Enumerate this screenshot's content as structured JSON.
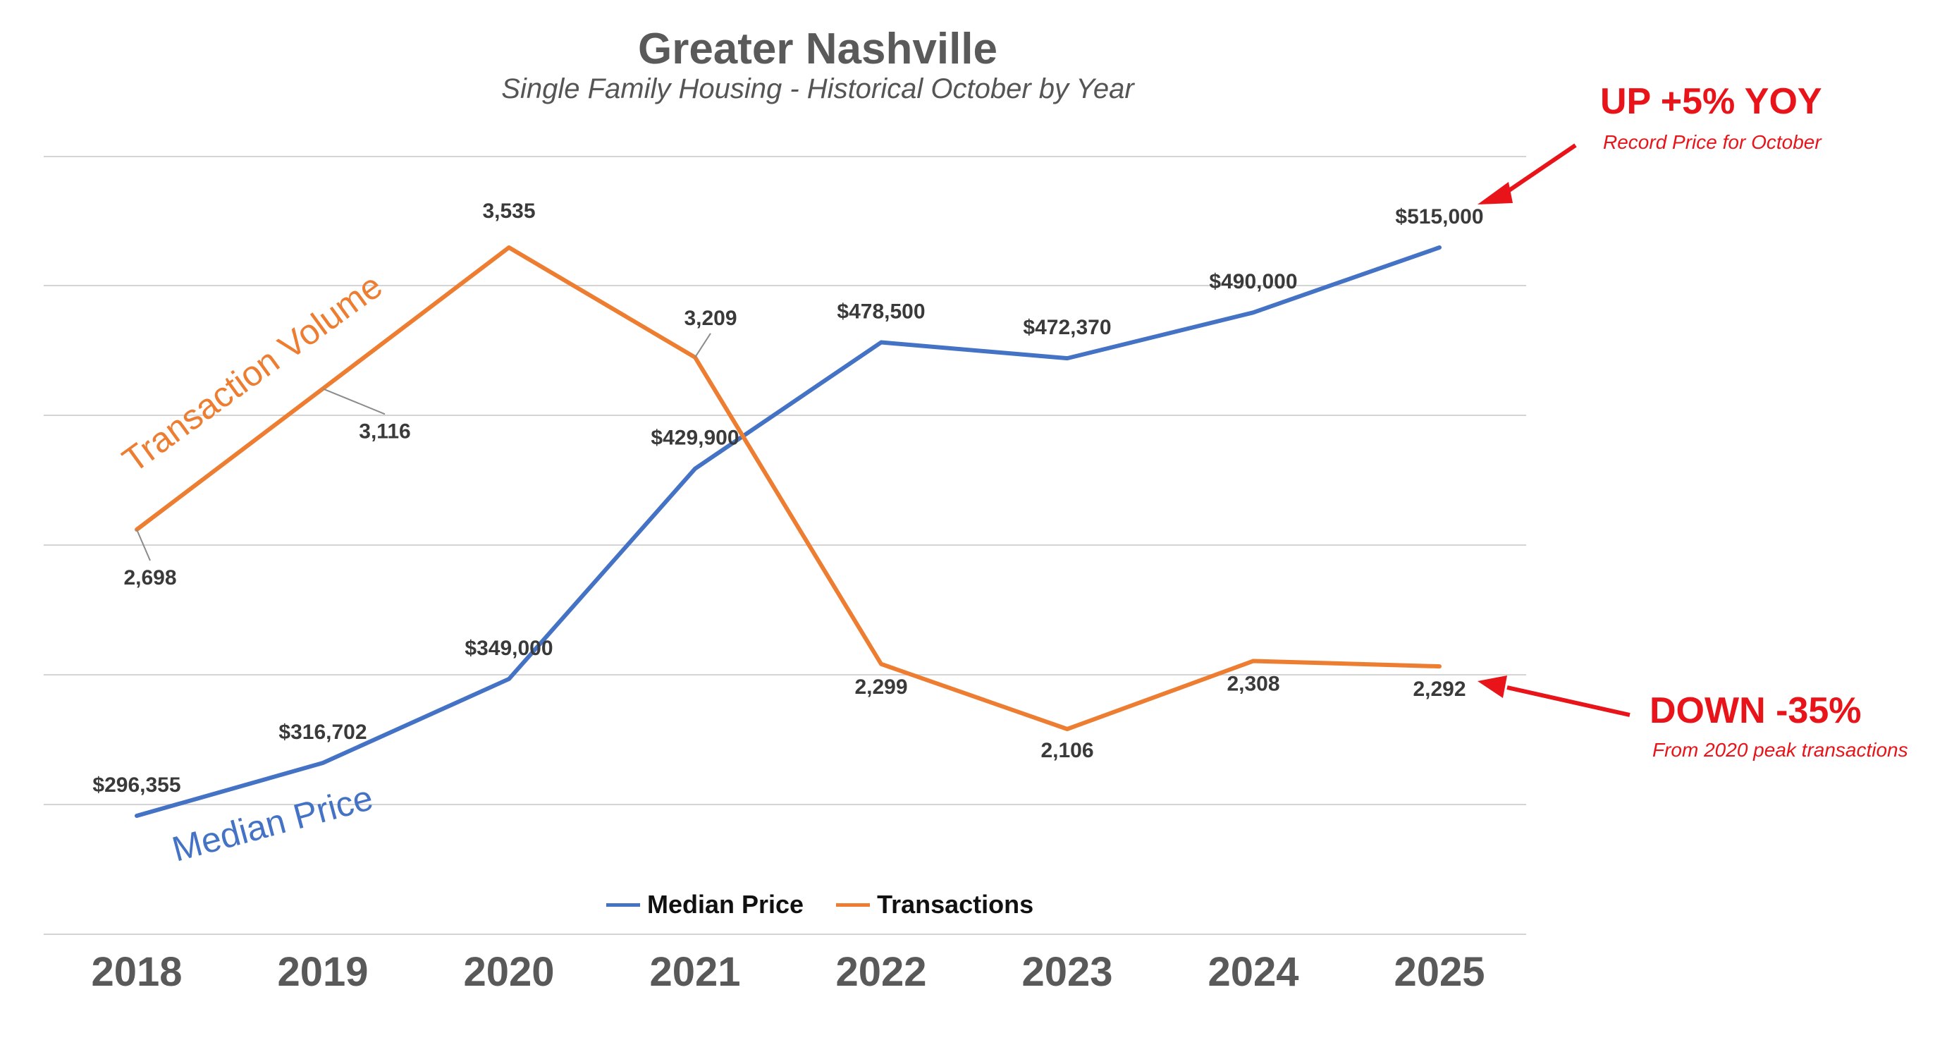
{
  "chart_data": {
    "type": "line",
    "title": "Greater Nashville",
    "subtitle": "Single Family Housing - Historical October by Year",
    "categories": [
      "2018",
      "2019",
      "2020",
      "2021",
      "2022",
      "2023",
      "2024",
      "2025"
    ],
    "series": [
      {
        "name": "Median Price",
        "color": "#4472c4",
        "values": [
          296355,
          316702,
          349000,
          429900,
          478500,
          472370,
          490000,
          515000
        ],
        "labels": [
          "$296,355",
          "$316,702",
          "$349,000",
          "$429,900",
          "$478,500",
          "$472,370",
          "$490,000",
          "$515,000"
        ],
        "inline_label": "Median Price"
      },
      {
        "name": "Transactions",
        "color": "#ed7d31",
        "values": [
          2698,
          3116,
          3535,
          3209,
          2299,
          2106,
          2308,
          2292
        ],
        "labels": [
          "2,698",
          "3,116",
          "3,535",
          "3,209",
          "2,299",
          "2,106",
          "2,308",
          "2,292"
        ],
        "inline_label": "Transaction Volume"
      }
    ],
    "legend_position": "bottom",
    "grid": true
  },
  "annotations": {
    "price_callout": {
      "headline": "UP +5% YOY",
      "detail": "Record Price for October",
      "color": "#e8141a"
    },
    "volume_callout": {
      "headline": "DOWN -35%",
      "detail": "From 2020 peak transactions",
      "color": "#e8141a"
    }
  }
}
